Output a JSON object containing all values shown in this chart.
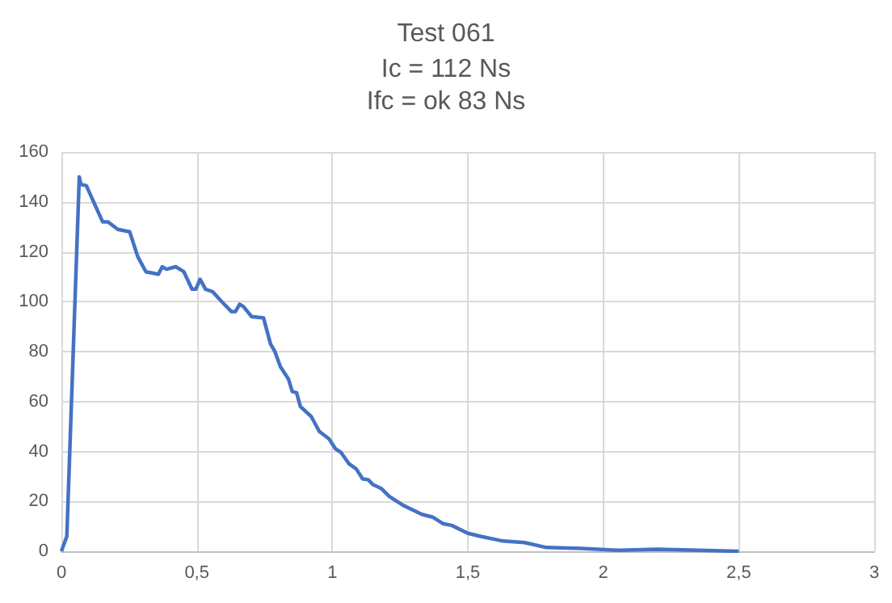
{
  "chart_data": {
    "type": "line",
    "title": "Test 061",
    "subtitle": "Ic = 112 Ns\nIfc = ok 83 Ns",
    "series": [
      {
        "color": "#4472c4",
        "x": [
          0,
          0.02,
          0.066,
          0.072,
          0.092,
          0.152,
          0.172,
          0.208,
          0.252,
          0.282,
          0.312,
          0.358,
          0.372,
          0.388,
          0.422,
          0.452,
          0.482,
          0.496,
          0.512,
          0.532,
          0.558,
          0.592,
          0.628,
          0.642,
          0.658,
          0.672,
          0.702,
          0.746,
          0.772,
          0.788,
          0.808,
          0.838,
          0.852,
          0.868,
          0.882,
          0.922,
          0.952,
          0.988,
          1.012,
          1.032,
          1.062,
          1.088,
          1.112,
          1.132,
          1.15,
          1.18,
          1.21,
          1.26,
          1.33,
          1.37,
          1.41,
          1.44,
          1.5,
          1.55,
          1.63,
          1.71,
          1.79,
          1.92,
          2.06,
          2.2,
          2.5
        ],
        "values": [
          0,
          6,
          150,
          147,
          146.5,
          132,
          132,
          129,
          128,
          118,
          112,
          111,
          114,
          113,
          114,
          112,
          105,
          105,
          109,
          105,
          104,
          100,
          96,
          96,
          99,
          98,
          94,
          93.5,
          83,
          80,
          74,
          69,
          64,
          63.5,
          58,
          54,
          48,
          45,
          41,
          39.6,
          35,
          33,
          29,
          28.7,
          26.7,
          25.2,
          22,
          18.5,
          14.8,
          13.7,
          11,
          10.4,
          7.2,
          5.9,
          4.1,
          3.5,
          1.5,
          1.1,
          0.4,
          0.8,
          0
        ]
      }
    ],
    "xlim": [
      0,
      3
    ],
    "xticks": [
      0,
      {
        "value": 0.5,
        "label": "0,5"
      },
      1,
      {
        "value": 1.5,
        "label": "1,5"
      },
      2,
      {
        "value": 2.5,
        "label": "2,5"
      },
      3
    ],
    "ylim": [
      0,
      160
    ],
    "yticks": [
      0,
      20,
      40,
      60,
      80,
      100,
      120,
      140,
      160
    ],
    "grid": true,
    "marker": "none",
    "line_style": "solid"
  }
}
